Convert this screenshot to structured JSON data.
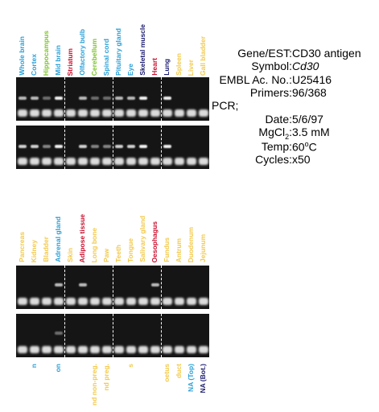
{
  "panel1": {
    "lanes": [
      {
        "label": "Whole brain",
        "color": "#2a9fd6",
        "band": "medium"
      },
      {
        "label": "Cortex",
        "color": "#2a9fd6",
        "band": "medium"
      },
      {
        "label": "Hippocampus",
        "color": "#7cc22a",
        "band": "weak"
      },
      {
        "label": "Mid brain",
        "color": "#2a9fd6",
        "band": "strong"
      },
      {
        "label": "Striatum",
        "color": "#c8102e",
        "band": "none"
      },
      {
        "label": "Olfactory bulb",
        "color": "#2a9fd6",
        "band": "medium"
      },
      {
        "label": "Cerebellum",
        "color": "#7cc22a",
        "band": "weak"
      },
      {
        "label": "Spinal cord",
        "color": "#2a9fd6",
        "band": "weak"
      },
      {
        "label": "Pituitary gland",
        "color": "#2a9fd6",
        "band": "medium"
      },
      {
        "label": "Eye",
        "color": "#2a9fd6",
        "band": "medium"
      },
      {
        "label": "Skeletal muscle",
        "color": "#1a1a6e",
        "band": "strong"
      },
      {
        "label": "Heart",
        "color": "#c8102e",
        "band": "none"
      },
      {
        "label": "Lung",
        "color": "#1a1a6e",
        "band": "strong"
      },
      {
        "label": "Spleen",
        "color": "#f2c94c",
        "band": "none"
      },
      {
        "label": "Liver",
        "color": "#f2c94c",
        "band": "none"
      },
      {
        "label": "Gall bladder",
        "color": "#f2c94c",
        "band": "none"
      }
    ]
  },
  "panel2": {
    "lanes": [
      {
        "label": "Pancreas",
        "color": "#f2c94c",
        "band": "none"
      },
      {
        "label": "Kidney",
        "color": "#f2c94c",
        "band": "none"
      },
      {
        "label": "Bladder",
        "color": "#f2c94c",
        "band": "none"
      },
      {
        "label": "Adrenal gland",
        "color": "#2a9fd6",
        "band": "medium"
      },
      {
        "label": "Skin",
        "color": "#f2c94c",
        "band": "none"
      },
      {
        "label": "Adipose tissue",
        "color": "#c8102e",
        "band": "medium"
      },
      {
        "label": "Long bone",
        "color": "#f2c94c",
        "band": "none"
      },
      {
        "label": "Paw",
        "color": "#f2c94c",
        "band": "none"
      },
      {
        "label": "Teeth",
        "color": "#f2c94c",
        "band": "none"
      },
      {
        "label": "Tongue",
        "color": "#f2c94c",
        "band": "none"
      },
      {
        "label": "Salivary gland",
        "color": "#f2c94c",
        "band": "none"
      },
      {
        "label": "Oesophagus",
        "color": "#c8102e",
        "band": "medium"
      },
      {
        "label": "Fundus",
        "color": "#f2c94c",
        "band": "none"
      },
      {
        "label": "Antrum",
        "color": "#f2c94c",
        "band": "none"
      },
      {
        "label": "Duodenum",
        "color": "#f2c94c",
        "band": "none"
      },
      {
        "label": "Jejunum",
        "color": "#f2c94c",
        "band": "none"
      }
    ]
  },
  "panel3_partial_labels": [
    {
      "text": "n",
      "color": "#2a9fd6"
    },
    {
      "text": "on",
      "color": "#2a9fd6"
    },
    {
      "text": "nd non-preg.",
      "color": "#f2c94c"
    },
    {
      "text": "nd preg.",
      "color": "#f2c94c"
    },
    {
      "text": "s",
      "color": "#f2c94c"
    },
    {
      "text": "oetus",
      "color": "#f2c94c"
    },
    {
      "text": "duct",
      "color": "#f2c94c"
    },
    {
      "text": "NA (Top)",
      "color": "#2a9fd6"
    },
    {
      "text": "NA (Bot.)",
      "color": "#1a1a6e"
    }
  ],
  "info": {
    "gene_key": "Gene/EST:",
    "gene_val": "CD30 antigen",
    "symbol_key": "Symbol:",
    "symbol_val": "Cd30",
    "embl_key": "EMBL Ac. No.:",
    "embl_val": "U25416",
    "primers_key": "Primers:",
    "primers_val": "96/368",
    "pcr_label": "PCR;",
    "date_key": "Date:",
    "date_val": "5/6/97",
    "mgcl_key_a": "MgCl",
    "mgcl_key_sub": "2",
    "mgcl_key_b": ":",
    "mgcl_val": "3.5 mM",
    "temp_key": "Temp:",
    "temp_val_num": "60",
    "temp_val_sup": "o",
    "temp_val_unit": "C",
    "cycles_key": "Cycles:",
    "cycles_val": "x50"
  }
}
